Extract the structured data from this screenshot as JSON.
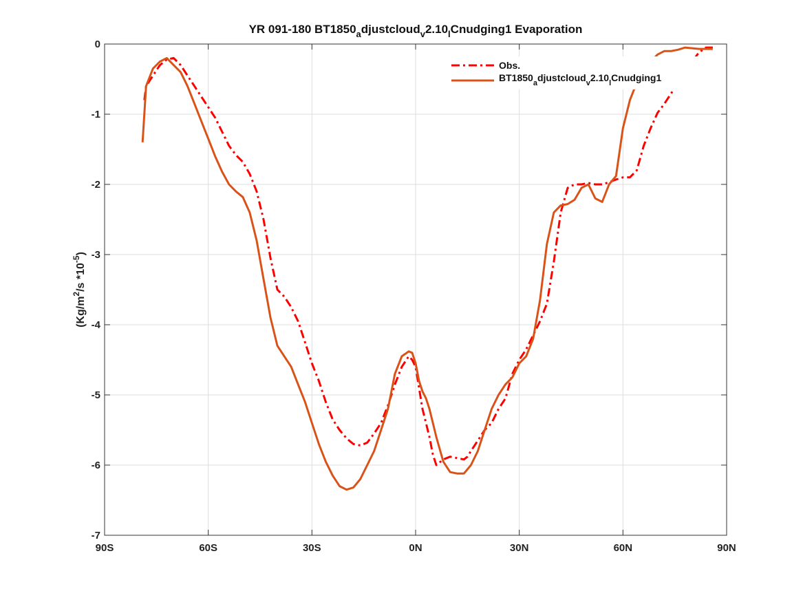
{
  "chart_data": {
    "type": "line",
    "title_parts": {
      "t1": "YR 091-180 BT1850",
      "s1": "a",
      "t2": "djustcloud",
      "s2": "v",
      "t3": "2.10",
      "s3": "l",
      "t4": "Cnudging1 Evaporation"
    },
    "ylabel_parts": {
      "pre": "(Kg/m",
      "sup1": "2",
      "mid": "/s *10",
      "sup2": "-5",
      "post": ")"
    },
    "xlim": [
      -90,
      90
    ],
    "ylim": [
      -7,
      0
    ],
    "xticks": [
      -90,
      -60,
      -30,
      0,
      30,
      60,
      90
    ],
    "xtick_labels": [
      "90S",
      "60S",
      "30S",
      "0N",
      "30N",
      "60N",
      "90N"
    ],
    "yticks": [
      0,
      -1,
      -2,
      -3,
      -4,
      -5,
      -6,
      -7
    ],
    "ytick_labels": [
      "0",
      "-1",
      "-2",
      "-3",
      "-4",
      "-5",
      "-6",
      "-7"
    ],
    "grid": true,
    "legend_position": "top-right",
    "legend_parts": {
      "obs": "Obs.",
      "m1": "BT1850",
      "m_s1": "a",
      "m2": "djustcloud",
      "m_s2": "v",
      "m3": "2.10",
      "m_s3": "l",
      "m4": "Cnudging1"
    },
    "series": [
      {
        "key": "obs",
        "color": "#ff0000",
        "style": "dashdot",
        "x": [
          -78.5,
          -78,
          -76,
          -74,
          -72,
          -70,
          -68,
          -66,
          -64,
          -62,
          -60,
          -58,
          -56,
          -54,
          -52,
          -50,
          -48,
          -46,
          -44,
          -42,
          -40,
          -38,
          -36,
          -34,
          -32,
          -30,
          -28,
          -26,
          -24,
          -22,
          -20,
          -18,
          -16,
          -14,
          -12,
          -10,
          -8,
          -6,
          -4,
          -2,
          -1,
          0,
          1,
          2,
          3,
          4,
          5,
          6,
          8,
          10,
          12,
          14,
          15,
          16,
          18,
          20,
          22,
          24,
          26,
          28,
          30,
          32,
          34,
          36,
          38,
          40,
          42,
          44,
          46,
          48,
          50,
          52,
          54,
          56,
          58,
          60,
          62,
          64,
          66,
          68,
          70,
          72,
          74,
          76,
          78,
          80,
          82,
          84,
          86
        ],
        "y": [
          -0.8,
          -0.6,
          -0.45,
          -0.3,
          -0.22,
          -0.2,
          -0.3,
          -0.45,
          -0.6,
          -0.75,
          -0.9,
          -1.05,
          -1.25,
          -1.45,
          -1.58,
          -1.68,
          -1.85,
          -2.1,
          -2.5,
          -3.05,
          -3.5,
          -3.6,
          -3.75,
          -3.95,
          -4.25,
          -4.55,
          -4.8,
          -5.1,
          -5.35,
          -5.5,
          -5.62,
          -5.7,
          -5.72,
          -5.68,
          -5.55,
          -5.4,
          -5.15,
          -4.85,
          -4.6,
          -4.45,
          -4.5,
          -4.6,
          -4.9,
          -5.2,
          -5.4,
          -5.6,
          -5.85,
          -6.0,
          -5.92,
          -5.88,
          -5.9,
          -5.92,
          -5.88,
          -5.8,
          -5.65,
          -5.5,
          -5.4,
          -5.2,
          -5.05,
          -4.7,
          -4.5,
          -4.35,
          -4.15,
          -3.95,
          -3.7,
          -3.1,
          -2.4,
          -2.05,
          -2.0,
          -2.0,
          -1.98,
          -2.0,
          -2.0,
          -1.97,
          -1.93,
          -1.9,
          -1.9,
          -1.8,
          -1.45,
          -1.2,
          -0.98,
          -0.85,
          -0.7,
          -0.55,
          -0.4,
          -0.25,
          -0.12,
          -0.05,
          -0.05
        ]
      },
      {
        "key": "model",
        "color": "#d95319",
        "style": "solid",
        "x": [
          -79,
          -78,
          -76,
          -74,
          -72,
          -70,
          -68,
          -66,
          -64,
          -62,
          -60,
          -58,
          -56,
          -54,
          -52,
          -50,
          -48,
          -46,
          -44,
          -42,
          -40,
          -38,
          -36,
          -34,
          -32,
          -30,
          -28,
          -26,
          -24,
          -22,
          -20,
          -18,
          -16,
          -14,
          -12,
          -10,
          -8,
          -6,
          -4,
          -2,
          -1,
          0,
          1,
          2,
          3,
          4,
          6,
          8,
          10,
          12,
          14,
          16,
          18,
          20,
          22,
          24,
          26,
          28,
          30,
          32,
          34,
          36,
          38,
          40,
          42,
          44,
          46,
          48,
          50,
          52,
          54,
          56,
          58,
          60,
          62,
          64,
          66,
          68,
          70,
          72,
          74,
          76,
          78,
          80,
          82,
          84,
          86
        ],
        "y": [
          -1.4,
          -0.6,
          -0.35,
          -0.25,
          -0.2,
          -0.3,
          -0.4,
          -0.6,
          -0.85,
          -1.1,
          -1.35,
          -1.6,
          -1.82,
          -2.0,
          -2.1,
          -2.18,
          -2.4,
          -2.8,
          -3.35,
          -3.9,
          -4.3,
          -4.45,
          -4.6,
          -4.85,
          -5.1,
          -5.4,
          -5.7,
          -5.95,
          -6.15,
          -6.3,
          -6.35,
          -6.32,
          -6.2,
          -6.0,
          -5.8,
          -5.5,
          -5.2,
          -4.7,
          -4.45,
          -4.38,
          -4.4,
          -4.55,
          -4.8,
          -4.95,
          -5.05,
          -5.2,
          -5.6,
          -5.95,
          -6.1,
          -6.12,
          -6.12,
          -6.0,
          -5.8,
          -5.5,
          -5.2,
          -5.0,
          -4.85,
          -4.75,
          -4.55,
          -4.45,
          -4.2,
          -3.65,
          -2.85,
          -2.4,
          -2.3,
          -2.28,
          -2.22,
          -2.05,
          -2.0,
          -2.2,
          -2.25,
          -2.0,
          -1.88,
          -1.2,
          -0.8,
          -0.55,
          -0.4,
          -0.25,
          -0.15,
          -0.1,
          -0.1,
          -0.08,
          -0.05,
          -0.06,
          -0.07,
          -0.07,
          -0.07
        ]
      }
    ]
  }
}
